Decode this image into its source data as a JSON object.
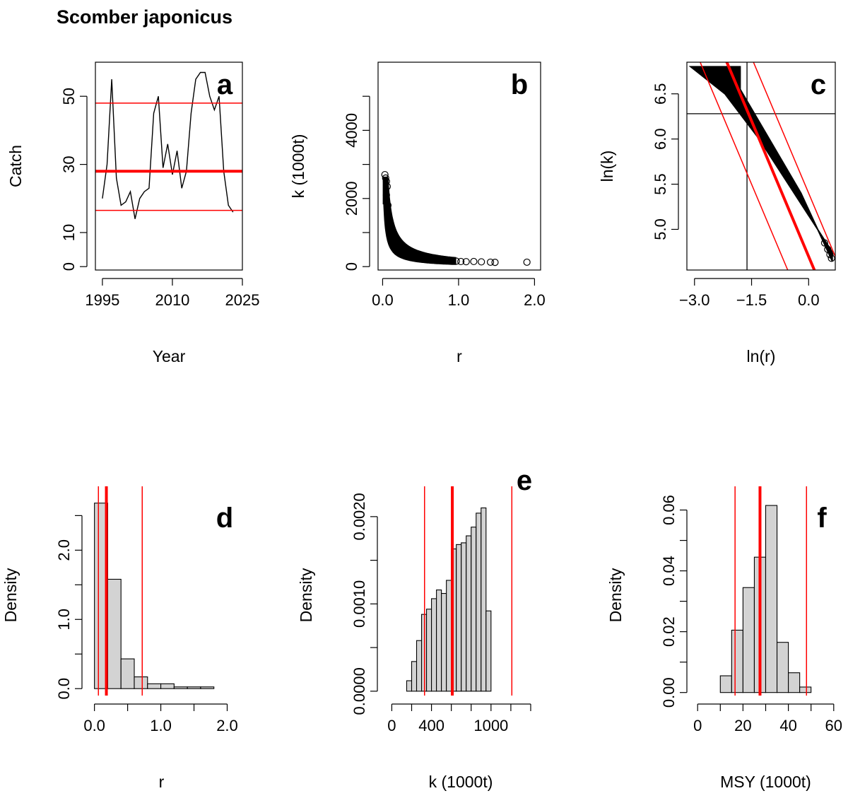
{
  "figure": {
    "title": "Scomber japonicus"
  },
  "chart_data": [
    {
      "id": "a",
      "type": "line",
      "letter": "a",
      "xlabel": "Year",
      "ylabel": "Catch",
      "xlim": [
        1993.5,
        2025
      ],
      "ylim": [
        -1,
        60
      ],
      "xticks": [
        1995,
        2010,
        2025
      ],
      "xtick_labels": [
        "1995",
        "2010",
        "2025"
      ],
      "yticks": [
        0,
        10,
        30,
        50
      ],
      "ytick_labels": [
        "0",
        "10",
        "30",
        "50"
      ],
      "series": [
        {
          "x": [
            1995,
            1996,
            1997,
            1998,
            1999,
            2000,
            2001,
            2002,
            2003,
            2004,
            2005,
            2006,
            2007,
            2008,
            2009,
            2010,
            2011,
            2012,
            2013,
            2014,
            2015,
            2016,
            2017,
            2018,
            2019,
            2020,
            2021,
            2022,
            2023
          ],
          "y": [
            20,
            30,
            55,
            26,
            18,
            19,
            22,
            14,
            20,
            22,
            23,
            45,
            50,
            29,
            36,
            27,
            34,
            23,
            28,
            45,
            55,
            57,
            57,
            50,
            46,
            50,
            28,
            18,
            16
          ],
          "color": "#000000"
        }
      ],
      "hlines": [
        {
          "y": 48,
          "color": "#ff0000",
          "width": 1.5
        },
        {
          "y": 28,
          "color": "#ff0000",
          "width": 4
        },
        {
          "y": 16.5,
          "color": "#ff0000",
          "width": 1.5
        }
      ]
    },
    {
      "id": "b",
      "type": "scatter",
      "letter": "b",
      "xlabel": "r",
      "ylabel": "k (1000t)",
      "xlim": [
        -0.06,
        2.08
      ],
      "ylim": [
        -100,
        6000
      ],
      "xticks": [
        0,
        1,
        2
      ],
      "xtick_labels": [
        "0.0",
        "1.0",
        "2.0"
      ],
      "yticks": [
        0,
        2000,
        4000
      ],
      "ytick_labels": [
        "0",
        "2000",
        "4000"
      ],
      "yticks_unlabeled": [
        1000,
        3000,
        5000
      ],
      "curve": {
        "k_min_a": 120,
        "k_max_a": 230,
        "r_from": 0.02,
        "r_to": 0.95
      },
      "points": [
        {
          "x": 0.03,
          "y": 2700
        },
        {
          "x": 0.04,
          "y": 2600
        },
        {
          "x": 0.05,
          "y": 2500
        },
        {
          "x": 0.06,
          "y": 2350
        },
        {
          "x": 0.05,
          "y": 2100
        },
        {
          "x": 0.07,
          "y": 1800
        },
        {
          "x": 0.97,
          "y": 160
        },
        {
          "x": 1.03,
          "y": 150
        },
        {
          "x": 1.1,
          "y": 145
        },
        {
          "x": 1.2,
          "y": 150
        },
        {
          "x": 1.3,
          "y": 140
        },
        {
          "x": 1.42,
          "y": 130
        },
        {
          "x": 1.48,
          "y": 125
        },
        {
          "x": 1.9,
          "y": 130
        }
      ]
    },
    {
      "id": "c",
      "type": "scatter",
      "letter": "c",
      "xlabel": "ln(r)",
      "ylabel": "ln(k)",
      "xlim": [
        -3.2,
        0.7
      ],
      "ylim": [
        4.55,
        6.85
      ],
      "xticks": [
        -3,
        -1.5,
        0
      ],
      "xtick_labels": [
        "−3.0",
        "−1.5",
        "0.0"
      ],
      "yticks": [
        5.0,
        5.5,
        6.0,
        6.5
      ],
      "ytick_labels": [
        "5.0",
        "5.5",
        "6.0",
        "6.5"
      ],
      "band": [
        {
          "x": -3.1,
          "y": 6.8
        },
        {
          "x": -1.8,
          "y": 6.8
        },
        {
          "x": -1.8,
          "y": 6.55
        },
        {
          "x": -0.2,
          "y": 5.4
        },
        {
          "x": 0.62,
          "y": 4.65
        },
        {
          "x": 0.62,
          "y": 4.75
        },
        {
          "x": -1.3,
          "y": 6.0
        },
        {
          "x": -2.2,
          "y": 6.5
        }
      ],
      "points": [
        {
          "x": 0.42,
          "y": 4.85
        },
        {
          "x": 0.5,
          "y": 4.78
        },
        {
          "x": 0.56,
          "y": 4.72
        },
        {
          "x": 0.6,
          "y": 4.68
        }
      ],
      "hlines": [
        {
          "y": 6.28,
          "color": "#000000",
          "width": 1.3
        }
      ],
      "vlines": [
        {
          "x": -1.62,
          "color": "#000000",
          "width": 1.3
        }
      ],
      "lines": [
        {
          "x1": -2.2,
          "y1": 6.9,
          "x2": 0.15,
          "y2": 4.55,
          "color": "#ff0000",
          "width": 4
        },
        {
          "x1": -2.9,
          "y1": 6.9,
          "x2": -0.55,
          "y2": 4.55,
          "color": "#ff0000",
          "width": 1.5
        },
        {
          "x1": -1.5,
          "y1": 6.9,
          "x2": 0.85,
          "y2": 4.55,
          "color": "#ff0000",
          "width": 1.5
        }
      ]
    },
    {
      "id": "d",
      "type": "bar",
      "letter": "d",
      "xlabel": "r",
      "ylabel": "Density",
      "xlim": [
        -0.06,
        2.08
      ],
      "ylim": [
        -0.1,
        2.8
      ],
      "xticks": [
        0,
        1,
        2
      ],
      "xtick_labels": [
        "0.0",
        "1.0",
        "2.0"
      ],
      "xticks_unlabeled": [
        0.5,
        1.5
      ],
      "yticks": [
        0,
        1,
        2
      ],
      "ytick_labels": [
        "0.0",
        "1.0",
        "2.0"
      ],
      "yticks_unlabeled": [
        0.5,
        1.5,
        2.5
      ],
      "bins": [
        {
          "x0": 0.0,
          "x1": 0.2,
          "y": 2.68
        },
        {
          "x0": 0.2,
          "x1": 0.4,
          "y": 1.58
        },
        {
          "x0": 0.4,
          "x1": 0.6,
          "y": 0.43
        },
        {
          "x0": 0.6,
          "x1": 0.8,
          "y": 0.17
        },
        {
          "x0": 0.8,
          "x1": 1.0,
          "y": 0.07
        },
        {
          "x0": 1.0,
          "x1": 1.2,
          "y": 0.07
        },
        {
          "x0": 1.2,
          "x1": 1.4,
          "y": 0.025
        },
        {
          "x0": 1.4,
          "x1": 1.6,
          "y": 0.025
        },
        {
          "x0": 1.6,
          "x1": 1.8,
          "y": 0.025
        }
      ],
      "vlines": [
        {
          "x": 0.06,
          "color": "#ff0000",
          "width": 1.5
        },
        {
          "x": 0.18,
          "color": "#ff0000",
          "width": 4
        },
        {
          "x": 0.72,
          "color": "#ff0000",
          "width": 1.5
        }
      ]
    },
    {
      "id": "e",
      "type": "bar",
      "letter": "e",
      "xlabel": "k (1000t)",
      "ylabel": "Density",
      "xlim": [
        -60,
        1450
      ],
      "ylim": [
        -5e-05,
        0.00225
      ],
      "xticks": [
        0,
        400,
        1000
      ],
      "xtick_labels": [
        "0",
        "400",
        "1000"
      ],
      "xticks_unlabeled": [
        200,
        600,
        800,
        1200,
        1400
      ],
      "yticks": [
        0,
        0.001,
        0.002
      ],
      "ytick_labels": [
        "0.0000",
        "0.0010",
        "0.0020"
      ],
      "yticks_unlabeled": [
        0.0005,
        0.0015
      ],
      "bins": [
        {
          "x0": 150,
          "x1": 200,
          "y": 0.00012
        },
        {
          "x0": 200,
          "x1": 250,
          "y": 0.00034
        },
        {
          "x0": 250,
          "x1": 300,
          "y": 0.00058
        },
        {
          "x0": 300,
          "x1": 350,
          "y": 0.00088
        },
        {
          "x0": 350,
          "x1": 400,
          "y": 0.00094
        },
        {
          "x0": 400,
          "x1": 450,
          "y": 0.00106
        },
        {
          "x0": 450,
          "x1": 500,
          "y": 0.00116
        },
        {
          "x0": 500,
          "x1": 550,
          "y": 0.00112
        },
        {
          "x0": 550,
          "x1": 600,
          "y": 0.00127
        },
        {
          "x0": 600,
          "x1": 650,
          "y": 0.00163
        },
        {
          "x0": 650,
          "x1": 700,
          "y": 0.00168
        },
        {
          "x0": 700,
          "x1": 750,
          "y": 0.0017
        },
        {
          "x0": 750,
          "x1": 800,
          "y": 0.00178
        },
        {
          "x0": 800,
          "x1": 850,
          "y": 0.00188
        },
        {
          "x0": 850,
          "x1": 900,
          "y": 0.00204
        },
        {
          "x0": 900,
          "x1": 950,
          "y": 0.0021
        },
        {
          "x0": 950,
          "x1": 1000,
          "y": 0.00092
        }
      ],
      "vlines": [
        {
          "x": 330,
          "color": "#ff0000",
          "width": 1.5
        },
        {
          "x": 610,
          "color": "#ff0000",
          "width": 4
        },
        {
          "x": 1210,
          "color": "#ff0000",
          "width": 1.5
        }
      ]
    },
    {
      "id": "f",
      "type": "bar",
      "letter": "f",
      "xlabel": "MSY (1000t)",
      "ylabel": "Density",
      "xlim": [
        -1,
        61
      ],
      "ylim": [
        -0.001,
        0.065
      ],
      "xticks": [
        0,
        20,
        40,
        60
      ],
      "xtick_labels": [
        "0",
        "20",
        "40",
        "60"
      ],
      "xticks_unlabeled": [
        10,
        30,
        50
      ],
      "yticks": [
        0,
        0.02,
        0.04,
        0.06
      ],
      "ytick_labels": [
        "0.00",
        "0.02",
        "0.04",
        "0.06"
      ],
      "yticks_unlabeled": [
        0.01,
        0.03,
        0.05
      ],
      "bins": [
        {
          "x0": 10,
          "x1": 15,
          "y": 0.0055
        },
        {
          "x0": 15,
          "x1": 20,
          "y": 0.0205
        },
        {
          "x0": 20,
          "x1": 25,
          "y": 0.0345
        },
        {
          "x0": 25,
          "x1": 30,
          "y": 0.0445
        },
        {
          "x0": 30,
          "x1": 35,
          "y": 0.0615
        },
        {
          "x0": 35,
          "x1": 40,
          "y": 0.0165
        },
        {
          "x0": 40,
          "x1": 45,
          "y": 0.0065
        },
        {
          "x0": 45,
          "x1": 50,
          "y": 0.0018
        }
      ],
      "vlines": [
        {
          "x": 16.5,
          "color": "#ff0000",
          "width": 1.5
        },
        {
          "x": 27.5,
          "color": "#ff0000",
          "width": 4
        },
        {
          "x": 48,
          "color": "#ff0000",
          "width": 1.5
        }
      ]
    }
  ]
}
